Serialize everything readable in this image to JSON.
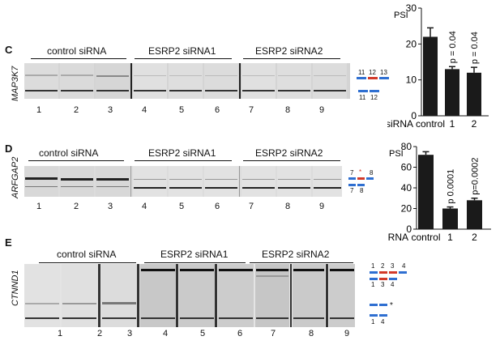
{
  "colors": {
    "exon_blue": "#2f6fd1",
    "exon_red": "#d23a2a",
    "bar_fill": "#1a1a1a"
  },
  "panelC": {
    "letter": "C",
    "gene": "MAP3K7",
    "groups": [
      "control siRNA",
      "ESRP2 siRNA1",
      "ESRP2 siRNA2"
    ],
    "lanes": [
      "1",
      "2",
      "3",
      "4",
      "5",
      "6",
      "7",
      "8",
      "9"
    ],
    "exons_top": [
      "11",
      "12",
      "13"
    ],
    "exons_bottom": [
      "11",
      "12"
    ]
  },
  "panelD": {
    "letter": "D",
    "gene": "ARFGAP2",
    "groups": [
      "control siRNA",
      "ESRP2 siRNA1",
      "ESRP2 siRNA2"
    ],
    "lanes": [
      "1",
      "2",
      "3",
      "4",
      "5",
      "6",
      "7",
      "8",
      "9"
    ],
    "exons_top": [
      "7",
      "*",
      "8"
    ],
    "exons_bottom": [
      "7",
      "8"
    ]
  },
  "panelE": {
    "letter": "E",
    "gene": "CTNND1",
    "groups": [
      "control siRNA",
      "ESRP2 siRNA1",
      "ESRP2 siRNA2"
    ],
    "lanes": [
      "1",
      "2",
      "3",
      "4",
      "5",
      "6",
      "7",
      "8",
      "9"
    ],
    "exons_top": [
      "1",
      "2",
      "3",
      "4"
    ],
    "exons_mid": [
      "1",
      "3",
      "4"
    ],
    "star": "*",
    "exons_bottom": [
      "1",
      "4"
    ]
  },
  "chart_data": [
    {
      "type": "bar",
      "ylabel": "PSI",
      "xaxis_title": "siRNA",
      "categories": [
        "control",
        "1",
        "2"
      ],
      "values": [
        22,
        13,
        12
      ],
      "errors": [
        2.5,
        0.7,
        1.5
      ],
      "annotations": [
        "",
        "p = 0.04",
        "p = 0.04"
      ],
      "ylim": [
        0,
        30
      ],
      "yticks": [
        "0",
        "10",
        "20",
        "30"
      ]
    },
    {
      "type": "bar",
      "ylabel": "PSI",
      "xaxis_title": "siRNA",
      "categories": [
        "control",
        "1",
        "2"
      ],
      "values": [
        72,
        20,
        28
      ],
      "errors": [
        3,
        1.5,
        2
      ],
      "annotations": [
        "",
        "p 0.0001",
        "p=0.0002"
      ],
      "ylim": [
        0,
        80
      ],
      "yticks": [
        "0",
        "20",
        "40",
        "60",
        "80"
      ]
    }
  ]
}
